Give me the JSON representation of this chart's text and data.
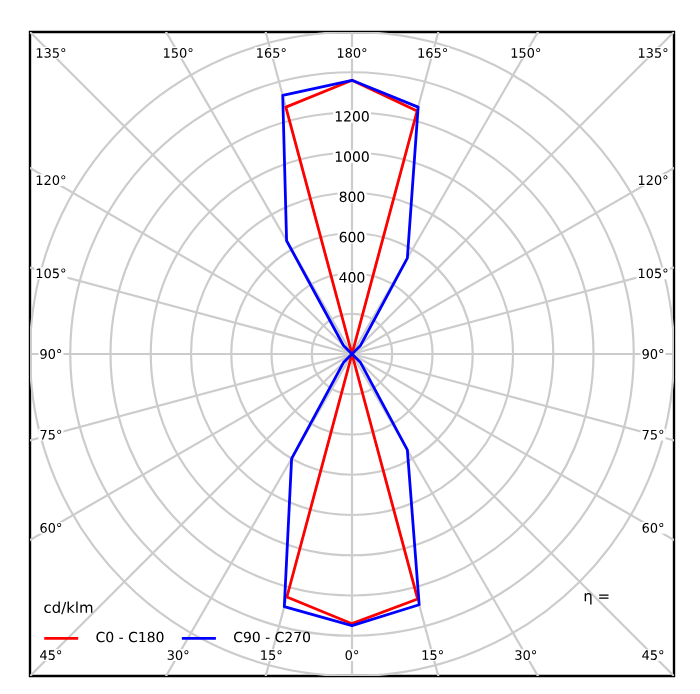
{
  "chart_data": {
    "type": "radar",
    "legend_title": "cd/klm",
    "annotations": [
      "η ="
    ],
    "categories": [
      "180°",
      "165°",
      "150°",
      "135°",
      "120°",
      "105°",
      "90°",
      "75°",
      "60°",
      "45°",
      "30°",
      "15°",
      "0°",
      "15°",
      "30°",
      "45°",
      "60°",
      "75°",
      "90°",
      "105°",
      "120°",
      "135°",
      "150°",
      "165°"
    ],
    "series": [
      {
        "name": "C0 - C180",
        "color": "#ff0000",
        "values": [
          1360,
          1250,
          0,
          0,
          0,
          0,
          0,
          0,
          0,
          0,
          0,
          1260,
          1340,
          1250,
          0,
          0,
          0,
          0,
          0,
          0,
          0,
          0,
          0,
          1270
        ]
      },
      {
        "name": "C90 - C270",
        "color": "#0000ff",
        "values": [
          1360,
          1270,
          550,
          60,
          0,
          0,
          0,
          0,
          0,
          60,
          550,
          1290,
          1350,
          1300,
          600,
          60,
          0,
          0,
          0,
          0,
          0,
          60,
          650,
          1330
        ]
      }
    ],
    "ylim": [
      0,
      1600
    ],
    "yticks": [
      400,
      600,
      800,
      1000,
      1200
    ],
    "grid": true,
    "legend": "bottom left",
    "marker": "none",
    "line_style": "solid"
  }
}
